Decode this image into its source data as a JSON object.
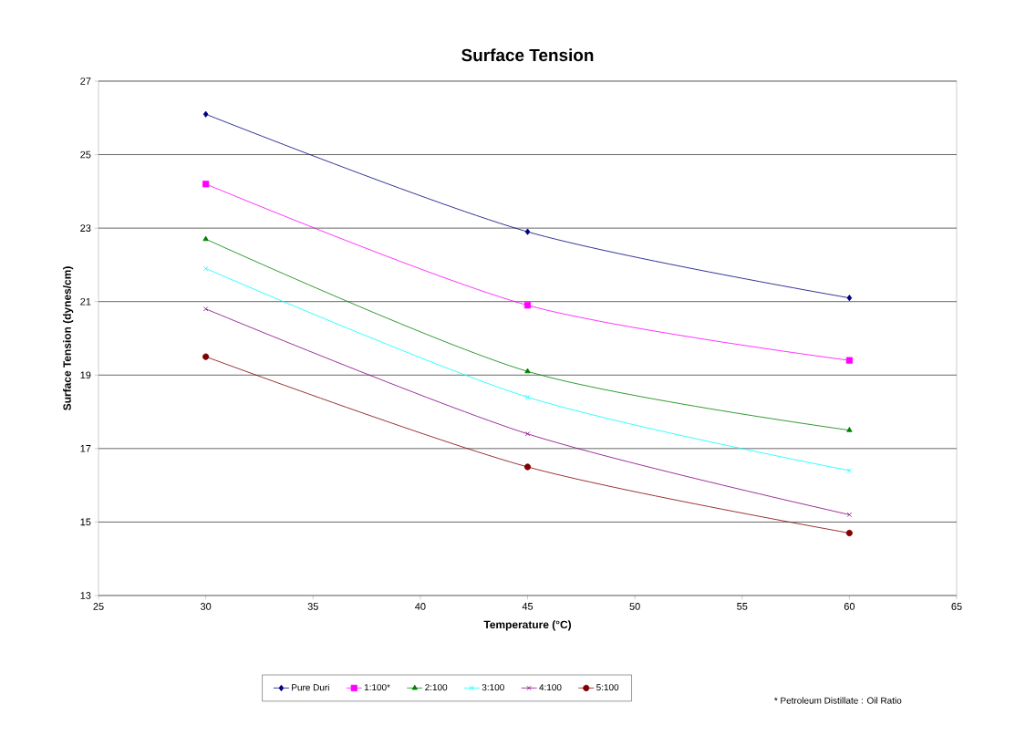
{
  "chart_data": {
    "type": "line",
    "title": "Surface Tension",
    "xlabel": "Temperature (°C)",
    "ylabel": "Surface Tension (dynes/cm)",
    "x": [
      30,
      45,
      60
    ],
    "xlim": [
      25,
      65
    ],
    "xticks": [
      25,
      30,
      35,
      40,
      45,
      50,
      55,
      60,
      65
    ],
    "ylim": [
      13,
      27
    ],
    "yticks": [
      13,
      15,
      17,
      19,
      21,
      23,
      25,
      27
    ],
    "grid": "y",
    "legend": "bottom",
    "line_style": "solid",
    "series": [
      {
        "name": "Pure Duri",
        "color": "#000080",
        "marker": "diamond",
        "values": [
          26.1,
          22.9,
          21.1
        ]
      },
      {
        "name": "1:100*",
        "color": "#ff00ff",
        "marker": "square",
        "values": [
          24.2,
          20.9,
          19.4
        ]
      },
      {
        "name": "2:100",
        "color": "#008000",
        "marker": "triangle",
        "values": [
          22.7,
          19.1,
          17.5
        ]
      },
      {
        "name": "3:100",
        "color": "#00ffff",
        "marker": "cross",
        "values": [
          21.9,
          18.4,
          16.4
        ]
      },
      {
        "name": "4:100",
        "color": "#800080",
        "marker": "cross",
        "values": [
          20.8,
          17.4,
          15.2
        ]
      },
      {
        "name": "5:100",
        "color": "#800000",
        "marker": "circle",
        "values": [
          19.5,
          16.5,
          14.7
        ]
      }
    ],
    "annotations": [
      "* Petroleum Distillate : Oil Ratio"
    ]
  }
}
